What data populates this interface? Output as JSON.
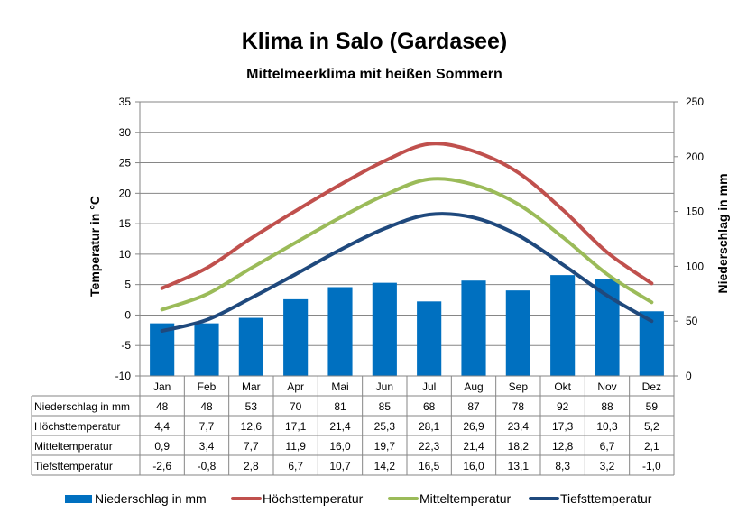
{
  "chart_data": {
    "type": "bar+line",
    "title": "Klima in Salo (Gardasee)",
    "subtitle": "Mittelmeerklima mit heißen Sommern",
    "ylabel_left": "Temperatur  in  °C",
    "ylabel_right": "Niederschlag  in  mm",
    "ylim_left": [
      -10,
      35
    ],
    "yticks_left": [
      "35",
      "30",
      "25",
      "20",
      "15",
      "10",
      "5",
      "0",
      "-5",
      "-10"
    ],
    "ylim_right": [
      0,
      250
    ],
    "yticks_right": [
      "250",
      "200",
      "150",
      "100",
      "50",
      "0"
    ],
    "categories": [
      "Jan",
      "Feb",
      "Mar",
      "Apr",
      "Mai",
      "Jun",
      "Jul",
      "Aug",
      "Sep",
      "Okt",
      "Nov",
      "Dez"
    ],
    "grid": true,
    "legend_position": "bottom",
    "series": [
      {
        "name": "Niederschlag in mm",
        "kind": "bar",
        "axis": "right",
        "color": "#0070C0",
        "values": [
          48,
          48,
          53,
          70,
          81,
          85,
          68,
          87,
          78,
          92,
          88,
          59
        ],
        "labels": [
          "48",
          "48",
          "53",
          "70",
          "81",
          "85",
          "68",
          "87",
          "78",
          "92",
          "88",
          "59"
        ]
      },
      {
        "name": "Höchsttemperatur",
        "kind": "line",
        "axis": "left",
        "color": "#C0504D",
        "values": [
          4.4,
          7.7,
          12.6,
          17.1,
          21.4,
          25.3,
          28.1,
          26.9,
          23.4,
          17.3,
          10.3,
          5.2
        ],
        "labels": [
          "4,4",
          "7,7",
          "12,6",
          "17,1",
          "21,4",
          "25,3",
          "28,1",
          "26,9",
          "23,4",
          "17,3",
          "10,3",
          "5,2"
        ]
      },
      {
        "name": "Mitteltemperatur",
        "kind": "line",
        "axis": "left",
        "color": "#9BBB59",
        "values": [
          0.9,
          3.4,
          7.7,
          11.9,
          16.0,
          19.7,
          22.3,
          21.4,
          18.2,
          12.8,
          6.7,
          2.1
        ],
        "labels": [
          "0,9",
          "3,4",
          "7,7",
          "11,9",
          "16,0",
          "19,7",
          "22,3",
          "21,4",
          "18,2",
          "12,8",
          "6,7",
          "2,1"
        ]
      },
      {
        "name": "Tiefsttemperatur",
        "kind": "line",
        "axis": "left",
        "color": "#1F497D",
        "values": [
          -2.6,
          -0.8,
          2.8,
          6.7,
          10.7,
          14.2,
          16.5,
          16.0,
          13.1,
          8.3,
          3.2,
          -1.0
        ],
        "labels": [
          "-2,6",
          "-0,8",
          "2,8",
          "6,7",
          "10,7",
          "14,2",
          "16,5",
          "16,0",
          "13,1",
          "8,3",
          "3,2",
          "-1,0"
        ]
      }
    ]
  }
}
